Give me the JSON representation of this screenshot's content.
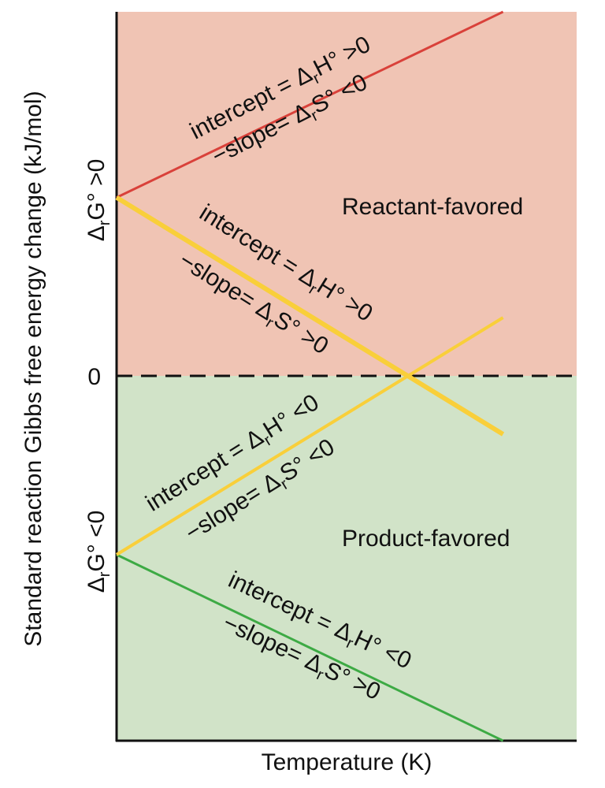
{
  "chart_data": {
    "type": "line",
    "xlabel": "Temperature (K)",
    "ylabel": "Standard reaction Gibbs free energy change (kJ/mol)",
    "x_range": [
      0,
      100
    ],
    "ylim": [
      -100,
      100
    ],
    "zero_tick": "0",
    "colors": {
      "reactant_region": "#f0c4b4",
      "product_region": "#d1e3c8",
      "red_line": "#d9413a",
      "yellow_line": "#f9cf3a",
      "green_line": "#3daa44"
    },
    "regions": {
      "upper": {
        "label": "Reactant-favored",
        "axis_label": "ΔrG° >0"
      },
      "lower": {
        "label": "Product-favored",
        "axis_label": "ΔrG° <0"
      }
    },
    "series": [
      {
        "name": "red",
        "x": [
          0,
          84
        ],
        "values": [
          49,
          100
        ],
        "intercept_label": "intercept = ΔrH° >0",
        "slope_label": "−slope= ΔrS° <0"
      },
      {
        "name": "yellow-descending",
        "x": [
          0,
          84
        ],
        "values": [
          49,
          -16
        ],
        "intercept_label": "intercept = ΔrH° >0",
        "slope_label": "−slope= ΔrS° >0"
      },
      {
        "name": "yellow-ascending",
        "x": [
          0,
          84
        ],
        "values": [
          -49,
          16
        ],
        "intercept_label": "intercept = ΔrH° <0",
        "slope_label": "−slope= ΔrS° <0"
      },
      {
        "name": "green",
        "x": [
          0,
          84
        ],
        "values": [
          -49,
          -100
        ],
        "intercept_label": "intercept = ΔrH° <0",
        "slope_label": "−slope= ΔrS° >0"
      }
    ]
  }
}
